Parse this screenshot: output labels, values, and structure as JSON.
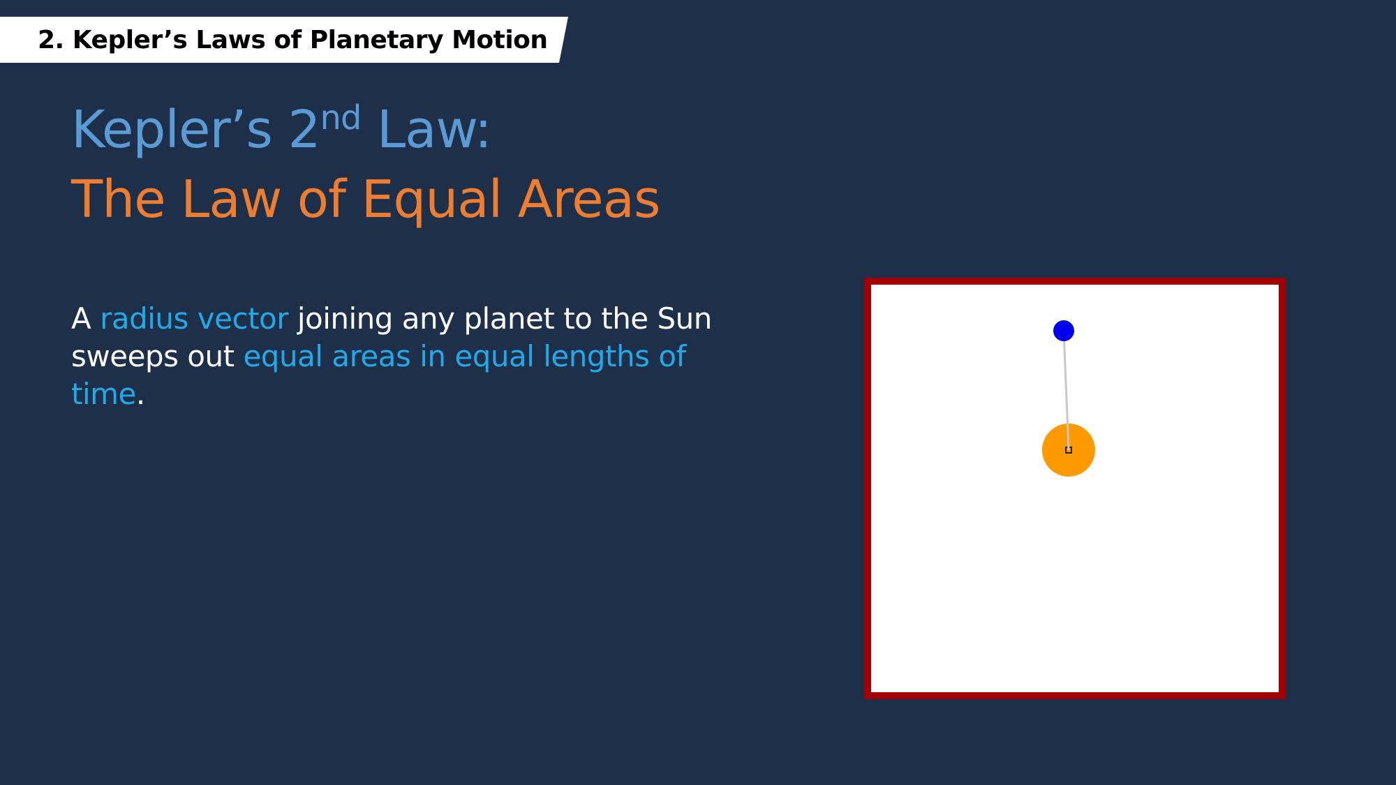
{
  "slide": {
    "section_label": "2. Kepler’s Laws of Planetary Motion",
    "title": {
      "line1_before_sup": "Kepler’s 2",
      "line1_sup": "nd",
      "line1_after_sup": " Law:",
      "line2": "The Law of Equal Areas"
    },
    "body": {
      "part1": "A ",
      "part2_highlight": "radius vector",
      "part3": " joining any planet to the Sun sweeps out ",
      "part4_highlight": "equal areas in equal lengths of time",
      "part5": "."
    }
  },
  "colors": {
    "background": "#1e3049",
    "title_blue": "#5b9bd5",
    "title_orange": "#ed7d31",
    "highlight_blue": "#21a9e9",
    "frame_border": "#a00000",
    "sun": "#ff9900",
    "planet": "#0000ee",
    "radius_line": "#c8c8c8"
  }
}
